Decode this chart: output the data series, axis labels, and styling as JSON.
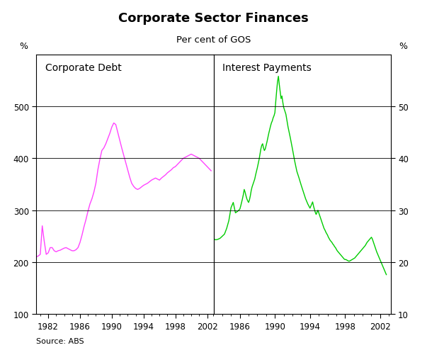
{
  "title": "Corporate Sector Finances",
  "subtitle": "Per cent of GOS",
  "source": "Source: ABS",
  "left_label": "Corporate Debt",
  "right_label": "Interest Payments",
  "left_ylabel": "%",
  "right_ylabel": "%",
  "ylim_left": [
    100,
    600
  ],
  "yticks_left": [
    100,
    200,
    300,
    400,
    500
  ],
  "yticks_right": [
    10,
    20,
    30,
    40,
    50
  ],
  "left_color": "#FF44FF",
  "right_color": "#00CC00",
  "left_xticks": [
    1982,
    1986,
    1990,
    1994,
    1998,
    2002
  ],
  "right_xticks": [
    1986,
    1990,
    1994,
    1998,
    2002
  ],
  "left_xlim": [
    1980.5,
    2002.8
  ],
  "right_xlim": [
    1983.0,
    2003.2
  ],
  "corporate_debt": {
    "years": [
      1980.5,
      1980.75,
      1981.0,
      1981.25,
      1981.5,
      1981.75,
      1982.0,
      1982.25,
      1982.5,
      1982.75,
      1983.0,
      1983.25,
      1983.5,
      1983.75,
      1984.0,
      1984.25,
      1984.5,
      1984.75,
      1985.0,
      1985.25,
      1985.5,
      1985.75,
      1986.0,
      1986.25,
      1986.5,
      1986.75,
      1987.0,
      1987.25,
      1987.5,
      1987.75,
      1988.0,
      1988.25,
      1988.5,
      1988.75,
      1989.0,
      1989.25,
      1989.5,
      1989.75,
      1990.0,
      1990.25,
      1990.5,
      1990.75,
      1991.0,
      1991.25,
      1991.5,
      1991.75,
      1992.0,
      1992.25,
      1992.5,
      1992.75,
      1993.0,
      1993.25,
      1993.5,
      1993.75,
      1994.0,
      1994.25,
      1994.5,
      1994.75,
      1995.0,
      1995.25,
      1995.5,
      1995.75,
      1996.0,
      1996.25,
      1996.5,
      1996.75,
      1997.0,
      1997.25,
      1997.5,
      1997.75,
      1998.0,
      1998.25,
      1998.5,
      1998.75,
      1999.0,
      1999.25,
      1999.5,
      1999.75,
      2000.0,
      2000.25,
      2000.5,
      2000.75,
      2001.0,
      2001.25,
      2001.5,
      2001.75,
      2002.0,
      2002.25,
      2002.5
    ],
    "values": [
      210,
      212,
      215,
      270,
      240,
      215,
      218,
      228,
      228,
      222,
      220,
      222,
      223,
      225,
      227,
      228,
      226,
      224,
      222,
      222,
      224,
      228,
      238,
      252,
      268,
      282,
      298,
      312,
      322,
      335,
      352,
      378,
      398,
      415,
      420,
      428,
      438,
      448,
      460,
      468,
      465,
      450,
      435,
      420,
      406,
      392,
      378,
      364,
      352,
      346,
      342,
      340,
      342,
      345,
      348,
      350,
      352,
      355,
      358,
      360,
      362,
      360,
      358,
      362,
      365,
      368,
      372,
      375,
      378,
      382,
      384,
      388,
      392,
      396,
      400,
      402,
      404,
      406,
      408,
      406,
      404,
      402,
      400,
      396,
      392,
      388,
      384,
      380,
      376
    ]
  },
  "interest_payments": {
    "years": [
      1983.0,
      1983.25,
      1983.5,
      1983.75,
      1984.0,
      1984.25,
      1984.5,
      1984.75,
      1985.0,
      1985.25,
      1985.5,
      1985.75,
      1986.0,
      1986.1,
      1986.2,
      1986.3,
      1986.4,
      1986.5,
      1986.6,
      1986.7,
      1986.8,
      1986.9,
      1987.0,
      1987.1,
      1987.2,
      1987.3,
      1987.4,
      1987.5,
      1987.6,
      1987.7,
      1987.8,
      1987.9,
      1988.0,
      1988.1,
      1988.2,
      1988.3,
      1988.4,
      1988.5,
      1988.6,
      1988.7,
      1988.8,
      1988.9,
      1989.0,
      1989.1,
      1989.2,
      1989.3,
      1989.4,
      1989.5,
      1989.6,
      1989.7,
      1989.8,
      1989.9,
      1990.0,
      1990.1,
      1990.2,
      1990.3,
      1990.4,
      1990.5,
      1990.6,
      1990.7,
      1990.8,
      1990.9,
      1991.0,
      1991.25,
      1991.5,
      1991.75,
      1992.0,
      1992.25,
      1992.5,
      1992.75,
      1993.0,
      1993.25,
      1993.5,
      1993.75,
      1994.0,
      1994.1,
      1994.2,
      1994.3,
      1994.4,
      1994.5,
      1994.6,
      1994.7,
      1994.8,
      1994.9,
      1995.0,
      1995.1,
      1995.2,
      1995.3,
      1995.4,
      1995.5,
      1995.6,
      1995.7,
      1995.8,
      1995.9,
      1996.0,
      1996.1,
      1996.2,
      1996.3,
      1996.4,
      1996.5,
      1996.6,
      1996.7,
      1996.8,
      1996.9,
      1997.0,
      1997.1,
      1997.2,
      1997.3,
      1997.4,
      1997.5,
      1997.6,
      1997.7,
      1997.8,
      1997.9,
      1998.0,
      1998.1,
      1998.2,
      1998.3,
      1998.4,
      1998.5,
      1998.6,
      1998.7,
      1998.8,
      1998.9,
      1999.0,
      1999.1,
      1999.2,
      1999.3,
      1999.4,
      1999.5,
      1999.6,
      1999.7,
      1999.8,
      1999.9,
      2000.0,
      2000.1,
      2000.2,
      2000.3,
      2000.4,
      2000.5,
      2000.6,
      2000.7,
      2000.8,
      2000.9,
      2001.0,
      2001.1,
      2001.2,
      2001.3,
      2001.4,
      2001.5,
      2001.6,
      2001.7,
      2001.8,
      2001.9,
      2002.0,
      2002.1,
      2002.2,
      2002.3,
      2002.4,
      2002.5,
      2002.6,
      2002.7
    ],
    "values": [
      245,
      243,
      244,
      246,
      250,
      254,
      265,
      280,
      305,
      315,
      295,
      298,
      302,
      308,
      315,
      322,
      330,
      340,
      335,
      328,
      322,
      318,
      315,
      320,
      328,
      338,
      345,
      350,
      355,
      360,
      368,
      375,
      382,
      390,
      398,
      408,
      418,
      425,
      428,
      420,
      415,
      418,
      425,
      432,
      440,
      448,
      455,
      462,
      468,
      472,
      478,
      482,
      488,
      510,
      530,
      548,
      558,
      542,
      528,
      515,
      520,
      508,
      498,
      485,
      460,
      440,
      418,
      395,
      375,
      362,
      348,
      335,
      322,
      312,
      304,
      308,
      312,
      316,
      308,
      302,
      296,
      292,
      296,
      300,
      295,
      290,
      285,
      280,
      275,
      270,
      265,
      262,
      258,
      255,
      252,
      248,
      245,
      242,
      240,
      238,
      235,
      233,
      230,
      228,
      225,
      222,
      220,
      218,
      216,
      214,
      212,
      210,
      208,
      206,
      205,
      205,
      204,
      203,
      202,
      202,
      203,
      204,
      205,
      206,
      207,
      208,
      210,
      212,
      214,
      216,
      218,
      220,
      222,
      224,
      226,
      228,
      230,
      232,
      235,
      238,
      240,
      242,
      244,
      246,
      248,
      245,
      240,
      235,
      230,
      225,
      220,
      216,
      212,
      208,
      204,
      200,
      196,
      192,
      188,
      184,
      180,
      176
    ]
  }
}
